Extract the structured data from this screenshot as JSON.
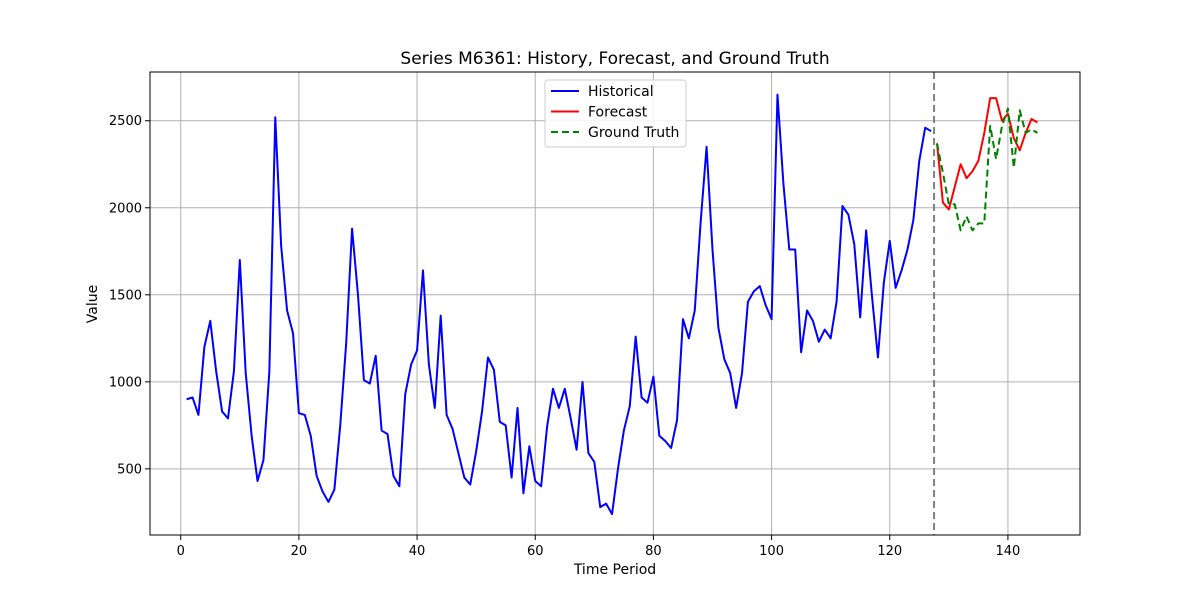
{
  "chart_data": {
    "type": "line",
    "title": "Series M6361: History, Forecast, and Ground Truth",
    "xlabel": "Time Period",
    "ylabel": "Value",
    "xlim": [
      -5.2,
      152.2
    ],
    "ylim": [
      120,
      2780
    ],
    "xticks": [
      0,
      20,
      40,
      60,
      80,
      100,
      120,
      140
    ],
    "yticks": [
      500,
      1000,
      1500,
      2000,
      2500
    ],
    "grid": true,
    "legend": {
      "placement": "top-center"
    },
    "forecast_start": 127.5,
    "series": [
      {
        "name": "Historical",
        "color": "#0000ff",
        "style": "solid",
        "x": [
          1,
          2,
          3,
          4,
          5,
          6,
          7,
          8,
          9,
          10,
          11,
          12,
          13,
          14,
          15,
          16,
          17,
          18,
          19,
          20,
          21,
          22,
          23,
          24,
          25,
          26,
          27,
          28,
          29,
          30,
          31,
          32,
          33,
          34,
          35,
          36,
          37,
          38,
          39,
          40,
          41,
          42,
          43,
          44,
          45,
          46,
          47,
          48,
          49,
          50,
          51,
          52,
          53,
          54,
          55,
          56,
          57,
          58,
          59,
          60,
          61,
          62,
          63,
          64,
          65,
          66,
          67,
          68,
          69,
          70,
          71,
          72,
          73,
          74,
          75,
          76,
          77,
          78,
          79,
          80,
          81,
          82,
          83,
          84,
          85,
          86,
          87,
          88,
          89,
          90,
          91,
          92,
          93,
          94,
          95,
          96,
          97,
          98,
          99,
          100,
          101,
          102,
          103,
          104,
          105,
          106,
          107,
          108,
          109,
          110,
          111,
          112,
          113,
          114,
          115,
          116,
          117,
          118,
          119,
          120,
          121,
          122,
          123,
          124,
          125,
          126,
          127
        ],
        "y": [
          900,
          910,
          810,
          1200,
          1350,
          1060,
          830,
          790,
          1060,
          1700,
          1050,
          690,
          430,
          550,
          1060,
          2520,
          1780,
          1410,
          1280,
          820,
          810,
          690,
          460,
          370,
          310,
          380,
          750,
          1220,
          1880,
          1500,
          1010,
          990,
          1150,
          720,
          700,
          460,
          400,
          930,
          1100,
          1180,
          1640,
          1100,
          850,
          1380,
          810,
          730,
          590,
          450,
          410,
          600,
          830,
          1140,
          1070,
          770,
          750,
          450,
          850,
          360,
          630,
          430,
          400,
          740,
          960,
          850,
          960,
          790,
          610,
          1000,
          590,
          540,
          280,
          300,
          240,
          500,
          720,
          860,
          1260,
          910,
          880,
          1030,
          690,
          660,
          620,
          780,
          1360,
          1250,
          1410,
          1920,
          2350,
          1760,
          1310,
          1130,
          1050,
          850,
          1050,
          1460,
          1520,
          1550,
          1440,
          1360,
          2650,
          2140,
          1760,
          1760,
          1170,
          1410,
          1350,
          1230,
          1300,
          1250,
          1460,
          2010,
          1960,
          1790,
          1370,
          1870,
          1490,
          1140,
          1570,
          1810,
          1540,
          1640,
          1760,
          1930,
          2270,
          2460,
          2440
        ]
      },
      {
        "name": "Forecast",
        "color": "#ff0000",
        "style": "solid",
        "x": [
          128,
          129,
          130,
          131,
          132,
          133,
          134,
          135,
          136,
          137,
          138,
          139,
          140,
          141,
          142,
          143,
          144,
          145
        ],
        "y": [
          2370,
          2030,
          1990,
          2120,
          2250,
          2170,
          2210,
          2270,
          2430,
          2630,
          2630,
          2500,
          2540,
          2400,
          2330,
          2430,
          2510,
          2490
        ]
      },
      {
        "name": "Ground Truth",
        "color": "#008000",
        "style": "dashed",
        "x": [
          128,
          129,
          130,
          131,
          132,
          133,
          134,
          135,
          136,
          137,
          138,
          139,
          140,
          141,
          142,
          143,
          144,
          145
        ],
        "y": [
          2370,
          2200,
          2020,
          2020,
          1870,
          1950,
          1870,
          1910,
          1910,
          2470,
          2280,
          2470,
          2570,
          2230,
          2560,
          2430,
          2450,
          2430
        ]
      }
    ]
  }
}
